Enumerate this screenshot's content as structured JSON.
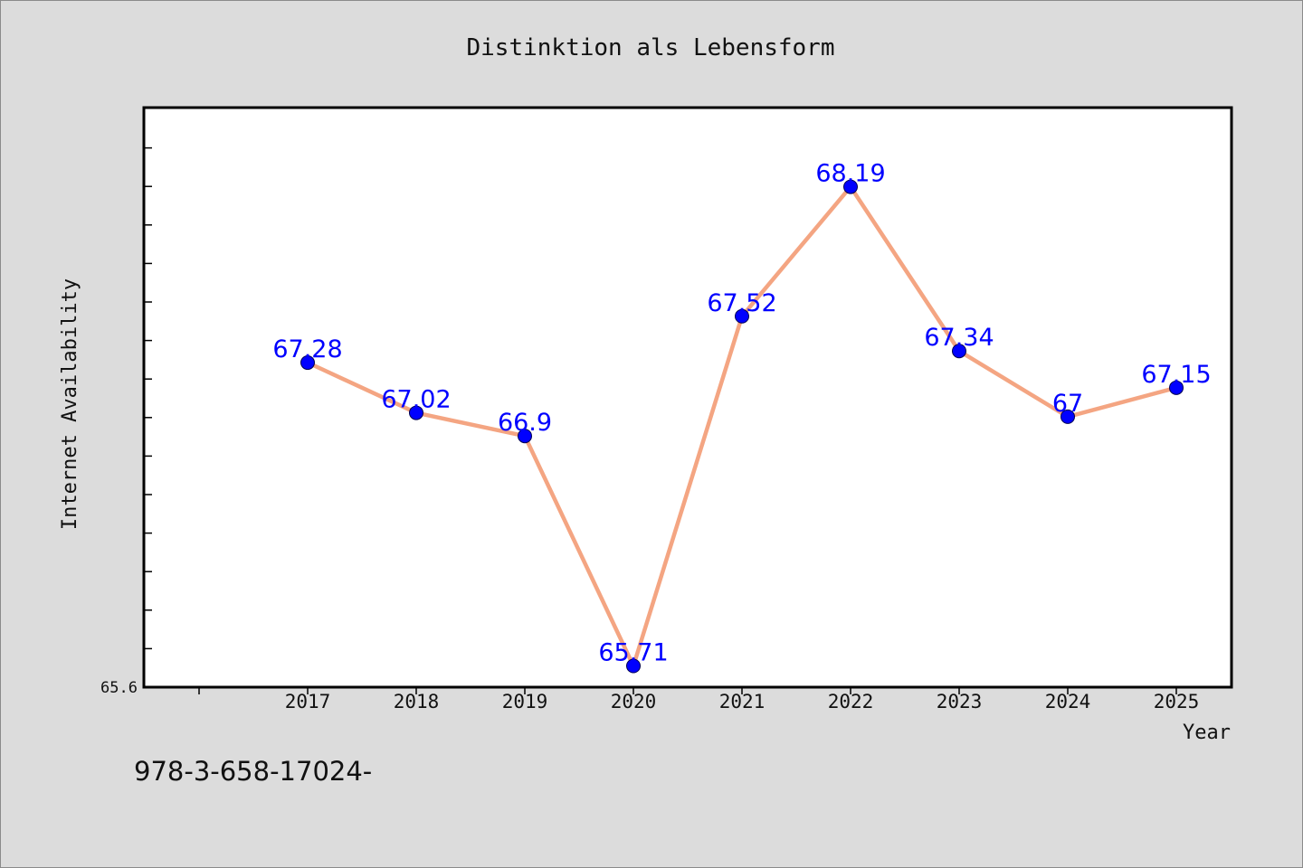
{
  "chart_data": {
    "type": "line",
    "title": "Distinktion als Lebensform",
    "xlabel": "Year",
    "ylabel": "Internet Availability",
    "categories": [
      "2017",
      "2018",
      "2019",
      "2020",
      "2021",
      "2022",
      "2023",
      "2024",
      "2025"
    ],
    "series": [
      {
        "values": [
          67.28,
          67.02,
          66.9,
          65.71,
          67.52,
          68.19,
          67.34,
          67.0,
          67.15
        ],
        "labels": [
          "67.28",
          "67.02",
          "66.9",
          "65.71",
          "67.52",
          "68.19",
          "67.34",
          "67",
          "67.15"
        ]
      }
    ],
    "ylim": [
      65.6,
      68.6
    ],
    "y_tick_label": "65.6",
    "grid": false,
    "line_color": "#f4a582",
    "marker_color": "#0000ff",
    "label_color": "#0000ff"
  },
  "footnote": "978-3-658-17024-"
}
